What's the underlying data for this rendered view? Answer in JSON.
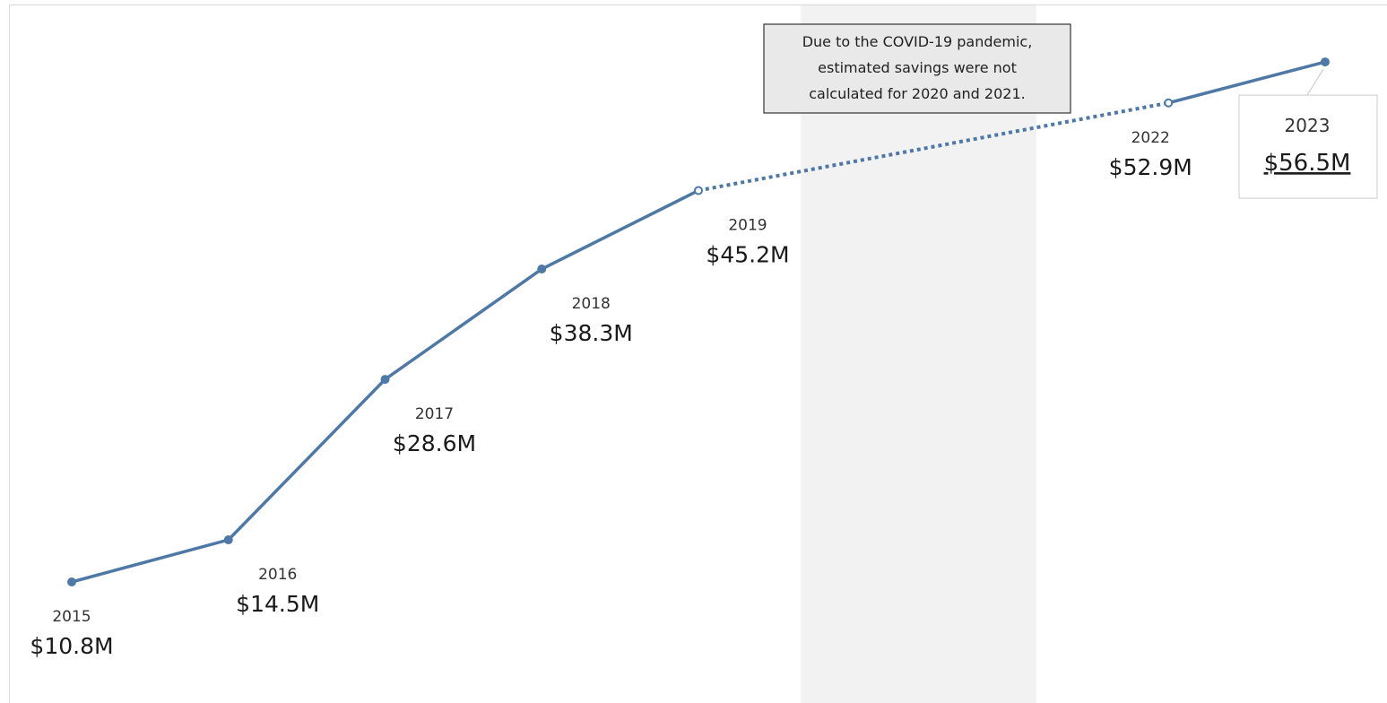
{
  "chart_data": {
    "type": "line",
    "x": [
      2015,
      2016,
      2017,
      2018,
      2019,
      2022,
      2023
    ],
    "series": [
      {
        "values": [
          10.8,
          14.5,
          28.6,
          38.3,
          45.2,
          52.9,
          56.5
        ],
        "color": "#4e79a7"
      }
    ],
    "point_year_labels": [
      "2015",
      "2016",
      "2017",
      "2018",
      "2019",
      "2022",
      "2023"
    ],
    "point_value_labels": [
      "$10.8M",
      "$14.5M",
      "$28.6M",
      "$38.3M",
      "$45.2M",
      "$52.9M",
      "$56.5M"
    ],
    "gap": {
      "from_year": 2019,
      "to_year": 2022,
      "style": "dotted",
      "shaded_band": [
        2020,
        2021
      ],
      "band_color": "#f2f2f2"
    },
    "annotation": {
      "lines": [
        "Due to the COVID-19 pandemic,",
        "estimated savings were not",
        "calculated for 2020 and 2021."
      ]
    },
    "title": "",
    "xlabel": "",
    "ylabel": "",
    "ylim": [
      0,
      60
    ],
    "grid": false,
    "legend": "none"
  }
}
